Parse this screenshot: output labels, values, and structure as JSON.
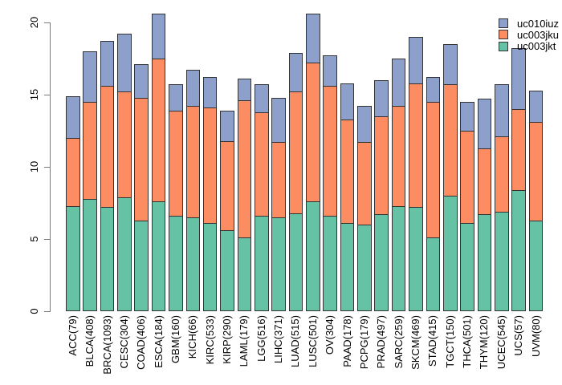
{
  "chart_data": {
    "type": "bar",
    "stacked": true,
    "title": "",
    "xlabel": "",
    "ylabel": "",
    "categories": [
      "ACC(79)",
      "BLCA(408)",
      "BRCA(1093)",
      "CESC(304)",
      "COAD(406)",
      "ESCA(184)",
      "GBM(160)",
      "KICH(66)",
      "KIRC(533)",
      "KIRP(290)",
      "LAML(179)",
      "LGG(516)",
      "LIHC(371)",
      "LUAD(515)",
      "LUSC(501)",
      "OV(304)",
      "PAAD(178)",
      "PCPG(179)",
      "PRAD(497)",
      "SARC(259)",
      "SKCM(469)",
      "STAD(415)",
      "TGCT(150)",
      "THCA(501)",
      "THYM(120)",
      "UCEC(545)",
      "UCS(57)",
      "UVM(80)"
    ],
    "series": [
      {
        "name": "uc003jkt",
        "color": "#66C2A5",
        "values": [
          7.3,
          7.8,
          7.2,
          7.9,
          6.3,
          7.6,
          6.6,
          6.5,
          6.1,
          5.6,
          5.1,
          6.6,
          6.5,
          6.8,
          7.6,
          6.6,
          6.1,
          6.0,
          6.7,
          7.3,
          7.2,
          5.1,
          8.0,
          6.1,
          6.7,
          6.9,
          8.4,
          6.3
        ]
      },
      {
        "name": "uc003jku",
        "color": "#FC8D62",
        "values": [
          4.7,
          6.7,
          8.4,
          7.3,
          8.5,
          9.9,
          7.3,
          7.7,
          8.0,
          6.2,
          9.5,
          7.2,
          5.2,
          8.4,
          9.6,
          9.0,
          7.2,
          5.7,
          6.8,
          6.9,
          8.6,
          9.4,
          7.7,
          6.4,
          4.6,
          5.2,
          5.6,
          6.8
        ]
      },
      {
        "name": "uc010iuz",
        "color": "#8DA0CB",
        "values": [
          2.9,
          3.5,
          3.1,
          4.0,
          2.3,
          3.1,
          1.8,
          2.5,
          2.1,
          2.1,
          1.5,
          1.9,
          3.1,
          2.7,
          3.4,
          2.1,
          2.5,
          2.5,
          2.5,
          3.3,
          3.2,
          1.7,
          2.8,
          2.0,
          3.4,
          3.6,
          4.2,
          2.2
        ]
      }
    ],
    "stack_order": "first-series-at-bottom",
    "yaxis": {
      "ticks": [
        "0",
        "5",
        "10",
        "15",
        "20"
      ],
      "tick_values": [
        0,
        5,
        10,
        15,
        20
      ],
      "ylim": [
        0,
        20.6
      ]
    },
    "grid": false,
    "legend": {
      "position": "top-right",
      "items": [
        {
          "label": "uc010iuz",
          "color": "#8DA0CB"
        },
        {
          "label": "uc003jku",
          "color": "#FC8D62"
        },
        {
          "label": "uc003jkt",
          "color": "#66C2A5"
        }
      ]
    },
    "bar_border_color": "#333333",
    "axis_color": "#7a7a7a",
    "text_color": "#000000"
  }
}
